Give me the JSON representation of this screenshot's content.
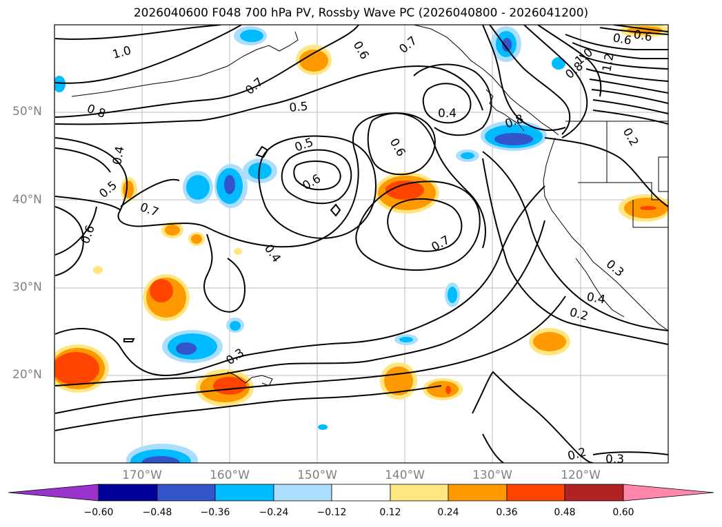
{
  "title": "2026040600 F048 700 hPa PV, Rossby Wave PC (2026040800 - 2026041200)",
  "lat_labels": [
    "50°N",
    "40°N",
    "30°N",
    "20°N"
  ],
  "lon_labels": [
    "170°W",
    "160°W",
    "150°W",
    "140°W",
    "130°W",
    "120°W"
  ],
  "colorbar": {
    "ticks": [
      "−0.60",
      "−0.48",
      "−0.36",
      "−0.24",
      "−0.12",
      "0.12",
      "0.24",
      "0.36",
      "0.48",
      "0.60"
    ],
    "colors": [
      "#9933cc",
      "#000099",
      "#3355cc",
      "#00bbff",
      "#aadeff",
      "#ffffff",
      "#ffe680",
      "#ff9900",
      "#ff4400",
      "#b22222",
      "#ff88aa"
    ]
  },
  "contour_labels": [
    "1.0",
    "0.8",
    "0.7",
    "0.6",
    "0.7",
    "0.6",
    "0.6",
    "0.8",
    "1.0",
    "1.2",
    "0.5",
    "0.4",
    "0.6",
    "0.8",
    "0.5",
    "0.6",
    "0.4",
    "0.5",
    "0.7",
    "0.6",
    "0.4",
    "0.7",
    "0.4",
    "0.2",
    "0.3",
    "0.3",
    "0.2",
    "0.3",
    "0.2"
  ]
}
